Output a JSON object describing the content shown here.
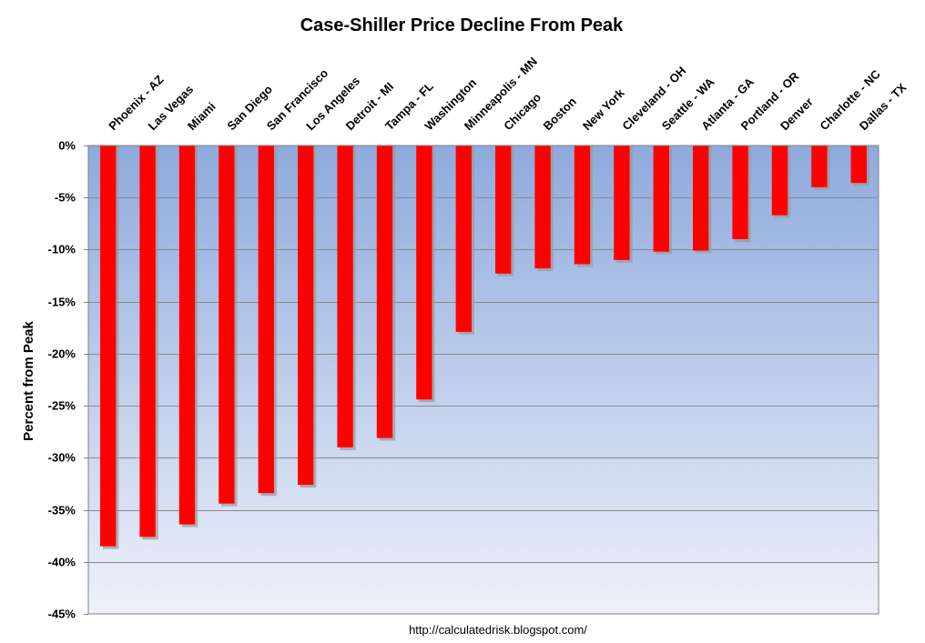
{
  "chart_data": {
    "type": "bar",
    "title": "Case-Shiller Price Decline From Peak",
    "xlabel": "",
    "ylabel": "Percent from Peak",
    "source": "http://calculatedrisk.blogspot.com/",
    "ylim": [
      -45,
      0
    ],
    "yticks": [
      0,
      -5,
      -10,
      -15,
      -20,
      -25,
      -30,
      -35,
      -40,
      -45
    ],
    "ytick_labels": [
      "0%",
      "-5%",
      "-10%",
      "-15%",
      "-20%",
      "-25%",
      "-30%",
      "-35%",
      "-40%",
      "-45%"
    ],
    "categories": [
      "Phoenix - AZ",
      "Las Vegas",
      "Miami",
      "San Diego",
      "San Francisco",
      "Los Angeles",
      "Detroit - MI",
      "Tampa - FL",
      "Washington",
      "Minneapolis - MN",
      "Chicago",
      "Boston",
      "New York",
      "Cleveland - OH",
      "Seattle - WA",
      "Atlanta - GA",
      "Portland - OR",
      "Denver",
      "Charlotte - NC",
      "Dallas - TX"
    ],
    "values": [
      -38.5,
      -37.6,
      -36.4,
      -34.4,
      -33.4,
      -32.6,
      -29.0,
      -28.1,
      -24.4,
      -17.9,
      -12.3,
      -11.8,
      -11.4,
      -11.0,
      -10.2,
      -10.1,
      -9.0,
      -6.7,
      -4.0,
      -3.6
    ],
    "grid": true,
    "legend": "none",
    "colors": {
      "bar": "#ff0000",
      "shadow": "#9a9a9a",
      "plot_top": "#8eaadc",
      "plot_bottom": "#eef1fa"
    }
  }
}
